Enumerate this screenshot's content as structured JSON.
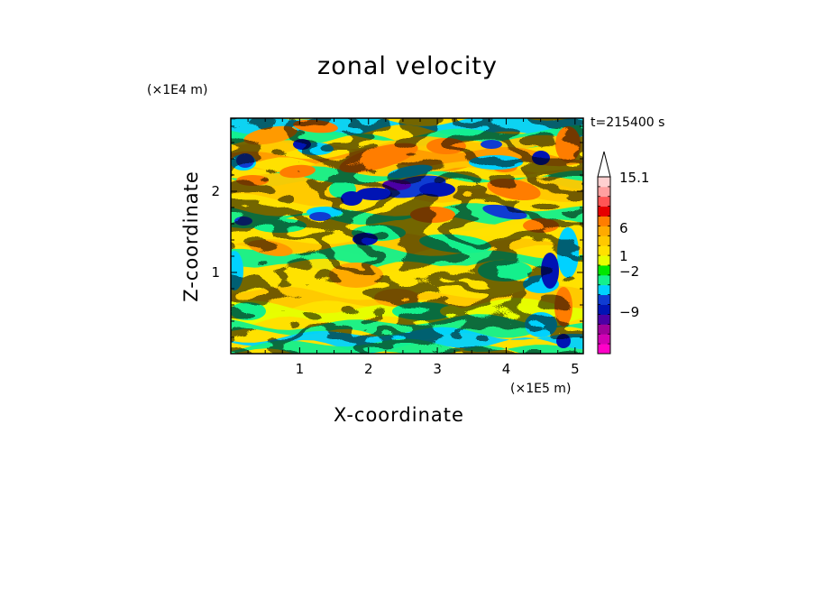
{
  "chart_data": {
    "type": "heatmap",
    "title": "zonal velocity",
    "xlabel": "X-coordinate",
    "ylabel": "Z-coordinate",
    "x_unit_label": "(×1E5 m)",
    "y_unit_label": "(×1E4 m)",
    "time_label": "t=215400 s",
    "xlim": [
      0,
      5.12
    ],
    "ylim": [
      0,
      2.9
    ],
    "x_ticks": [
      "1",
      "2",
      "3",
      "4",
      "5"
    ],
    "y_ticks": [
      "1",
      "2"
    ],
    "colorbar": {
      "labels": [
        "15.1",
        "6",
        "1",
        "−2",
        "−9"
      ],
      "colors": [
        "#ff00c8",
        "#d200b4",
        "#a0009b",
        "#4b00a5",
        "#0014b4",
        "#0f3cd2",
        "#00d2ff",
        "#14f08c",
        "#00e600",
        "#e6ff00",
        "#ffe100",
        "#ffc800",
        "#ffaa00",
        "#ff7d00",
        "#e60000",
        "#ff5555",
        "#ffa0a0",
        "#ffd0d0"
      ],
      "extend": "max"
    }
  }
}
